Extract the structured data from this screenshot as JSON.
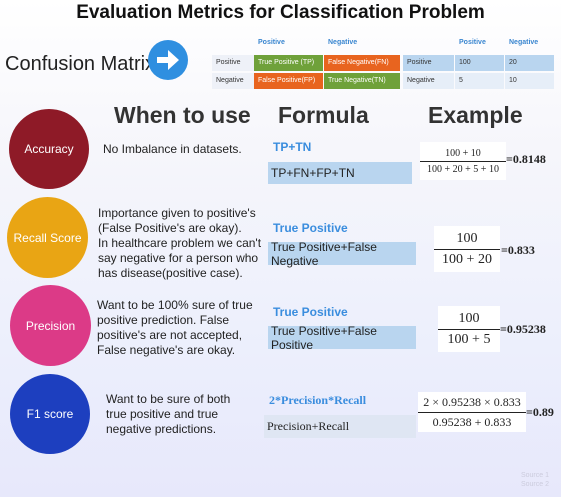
{
  "title": "Evaluation Metrics for Classification Problem",
  "confusion_label": "Confusion Matrix",
  "matrix": {
    "col_headers": [
      "Positive",
      "Negative"
    ],
    "rows": [
      {
        "label": "Positive",
        "cells": [
          "True Positive (TP)",
          "False Negative(FN)"
        ]
      },
      {
        "label": "Negative",
        "cells": [
          "False Positive(FP)",
          "True Negative(TN)"
        ]
      }
    ]
  },
  "example_matrix": {
    "col_headers": [
      "Positive",
      "Negative"
    ],
    "rows": [
      {
        "label": "Positive",
        "cells": [
          "100",
          "20"
        ]
      },
      {
        "label": "Negative",
        "cells": [
          "5",
          "10"
        ]
      }
    ]
  },
  "headers": {
    "when": "When to use",
    "formula": "Formula",
    "example": "Example"
  },
  "metrics": [
    {
      "name": "Accuracy",
      "color": "#8e1a27",
      "when": [
        "No Imbalance in datasets."
      ],
      "numerator": "TP+TN",
      "denominator": "TP+FN+FP+TN",
      "ex_num": "100 + 10",
      "ex_den": "100 + 20 + 5 + 10",
      "result": "=0.8148"
    },
    {
      "name": "Recall Score",
      "color": "#e9a514",
      "when": [
        "Importance given to positive's",
        "(False Positive's are okay).",
        "In healthcare problem we can't",
        "say negative for a person who",
        "has disease(positive case)."
      ],
      "numerator": "True Positive",
      "denominator": "True Positive+False Negative",
      "ex_num": "100",
      "ex_den": "100 + 20",
      "result": "=0.833"
    },
    {
      "name": "Precision",
      "color": "#dc3a87",
      "when": [
        "Want to be 100% sure of true",
        "positive prediction. False",
        "positive's are not accepted,",
        "False negative's are okay."
      ],
      "numerator": "True Positive",
      "denominator": "True Positive+False Positive",
      "ex_num": "100",
      "ex_den": "100 + 5",
      "result": "=0.95238"
    },
    {
      "name": "F1 score",
      "color": "#1d3fbf",
      "when": [
        "Want to be sure of both",
        "true positive and true",
        "negative predictions."
      ],
      "numerator": "2*Precision*Recall",
      "denominator": "Precision+Recall",
      "ex_num": "2 × 0.95238 × 0.833",
      "ex_den": "0.95238 + 0.833",
      "result": "=0.89"
    }
  ],
  "source": [
    "Source 1",
    "Source 2"
  ]
}
